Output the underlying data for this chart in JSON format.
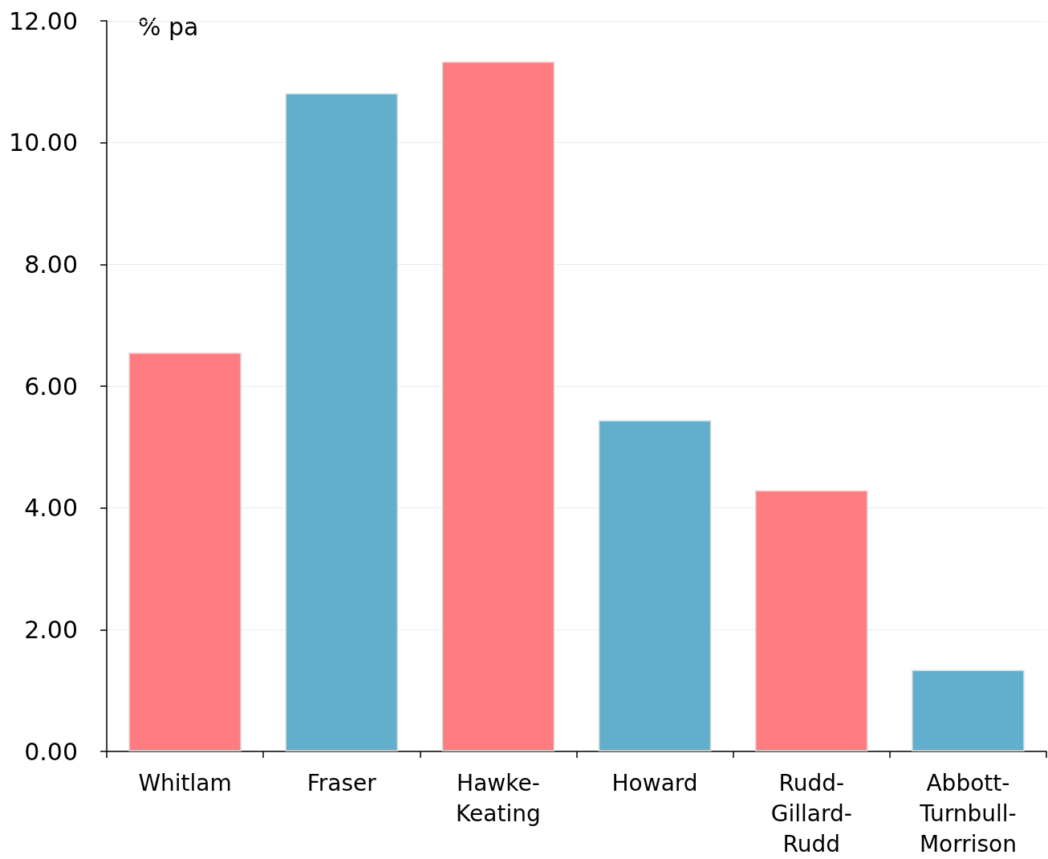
{
  "chart_data": {
    "type": "bar",
    "ylabel": "% pa",
    "categories": [
      "Whitlam",
      "Fraser",
      "Hawke-Keating",
      "Howard",
      "Rudd-Gillard-Rudd",
      "Abbott-Turnbull-Morrison"
    ],
    "values": [
      6.55,
      10.81,
      11.33,
      5.44,
      4.29,
      1.34
    ],
    "colors": [
      "#ff7c80",
      "#61afcc",
      "#ff7c80",
      "#61afcc",
      "#ff7c80",
      "#61afcc"
    ],
    "ylim": [
      0,
      12
    ],
    "yticks": [
      {
        "value": 0,
        "label": "0.00"
      },
      {
        "value": 2,
        "label": "2.00"
      },
      {
        "value": 4,
        "label": "4.00"
      },
      {
        "value": 6,
        "label": "6.00"
      },
      {
        "value": 8,
        "label": "8.00"
      },
      {
        "value": 10,
        "label": "10.00"
      },
      {
        "value": 12,
        "label": "12.00"
      }
    ],
    "grid": "y"
  }
}
